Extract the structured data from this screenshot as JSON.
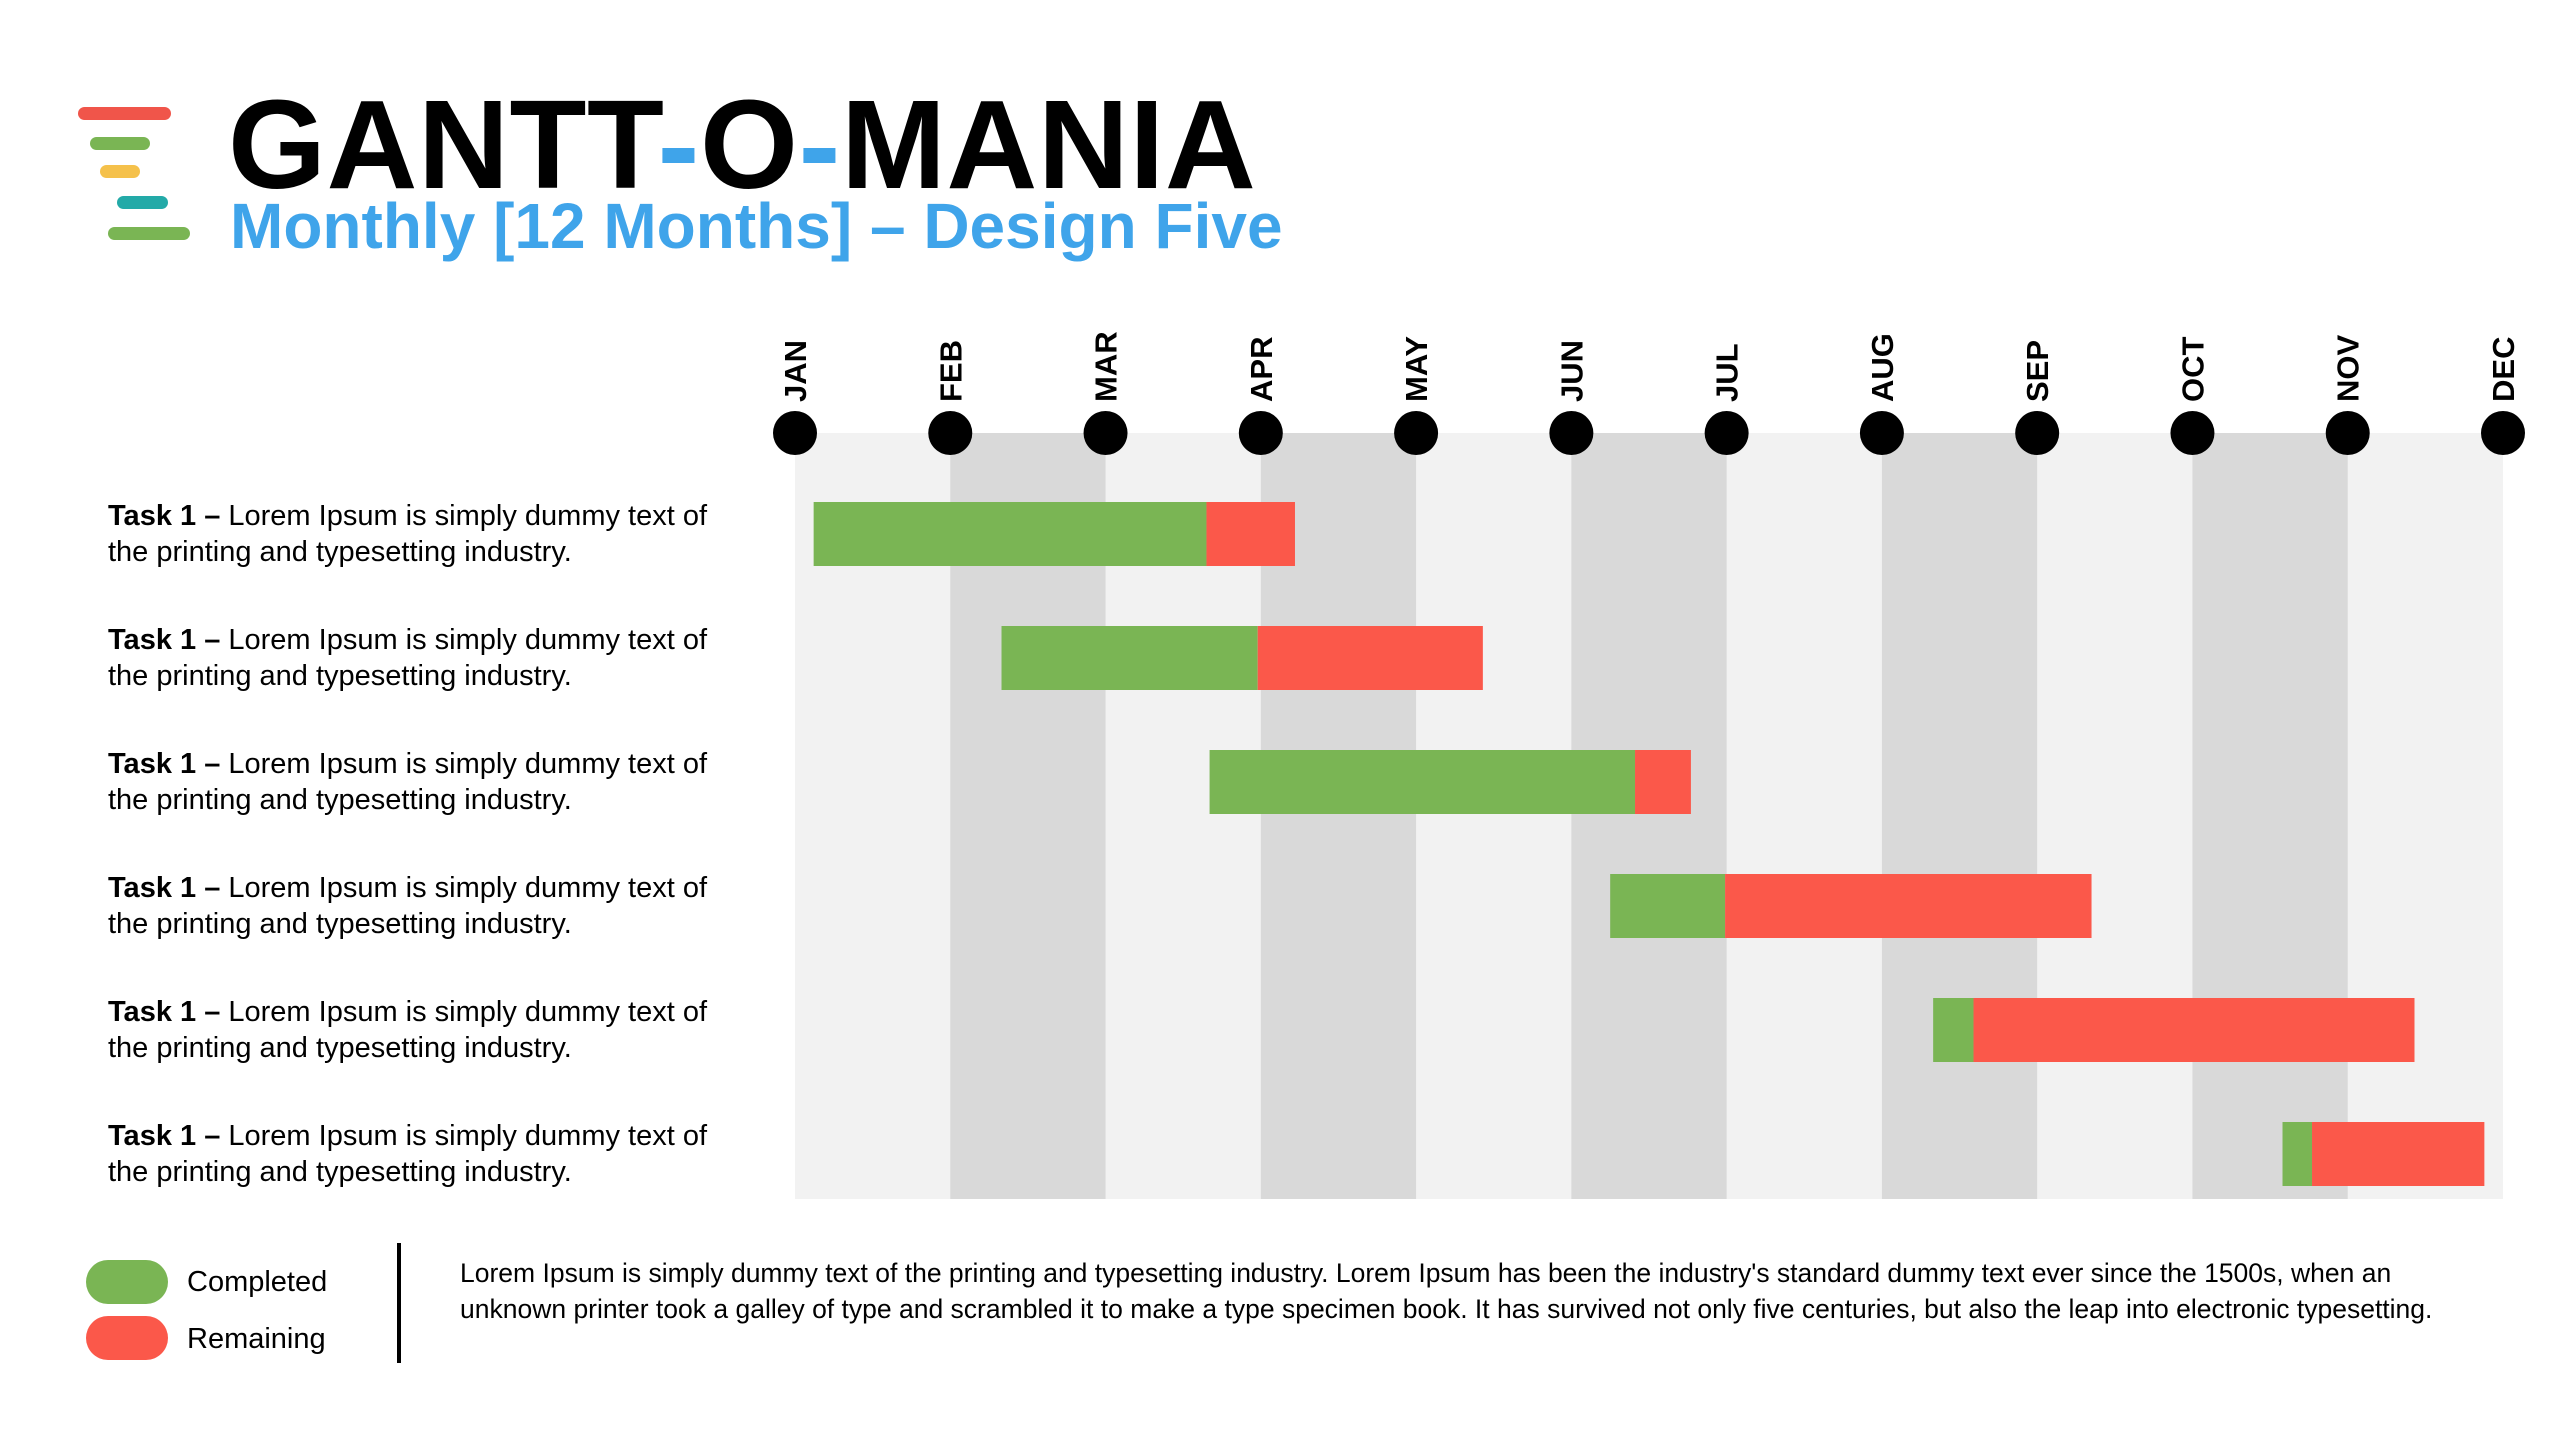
{
  "header": {
    "title_part1": "GANTT",
    "title_dash": "-",
    "title_part2": "O",
    "title_part3": "MANIA",
    "subtitle": "Monthly [12 Months] – Design Five"
  },
  "colors": {
    "completed": "#7ab554",
    "remaining": "#fb584a",
    "accent": "#3fa4ea",
    "column_light": "#f2f2f2",
    "column_dark": "#d9d9d9",
    "logo_bars": [
      "#f0554a",
      "#7ab554",
      "#f5c14b",
      "#23aaa8",
      "#7ab554"
    ]
  },
  "chart_data": {
    "type": "gantt",
    "months": [
      "JAN",
      "FEB",
      "MAR",
      "APR",
      "MAY",
      "JUN",
      "JUL",
      "AUG",
      "SEP",
      "OCT",
      "NOV",
      "DEC"
    ],
    "series": [
      {
        "name": "Completed",
        "color": "#7ab554"
      },
      {
        "name": "Remaining",
        "color": "#fb584a"
      }
    ],
    "tasks": [
      {
        "bold": "Task 1 –",
        "text": " Lorem Ipsum is simply dummy text of the printing and typesetting industry.",
        "start": 0.12,
        "completed_end": 2.65,
        "end": 3.22
      },
      {
        "bold": "Task 1 –",
        "text": " Lorem Ipsum is simply dummy text of the printing and typesetting industry.",
        "start": 1.33,
        "completed_end": 2.98,
        "end": 4.43
      },
      {
        "bold": "Task 1 –",
        "text": " Lorem Ipsum is simply dummy text of the printing and typesetting industry.",
        "start": 2.67,
        "completed_end": 5.41,
        "end": 5.77
      },
      {
        "bold": "Task 1 –",
        "text": " Lorem Ipsum is simply dummy text of the printing and typesetting industry.",
        "start": 5.25,
        "completed_end": 5.99,
        "end": 8.35
      },
      {
        "bold": "Task 1 –",
        "text": " Lorem Ipsum is simply dummy text of the printing and typesetting industry.",
        "start": 7.33,
        "completed_end": 7.59,
        "end": 10.43
      },
      {
        "bold": "Task 1 –",
        "text": " Lorem Ipsum is simply dummy text of the printing and typesetting industry.",
        "start": 9.58,
        "completed_end": 9.77,
        "end": 10.88
      }
    ]
  },
  "legend": {
    "completed_label": "Completed",
    "remaining_label": "Remaining"
  },
  "footnote": "Lorem Ipsum is simply dummy text of the printing and typesetting industry. Lorem Ipsum has been the industry's standard dummy text ever since the 1500s, when an unknown printer took a galley of type and scrambled it to make a type specimen book. It has survived not only five centuries, but also the leap into electronic typesetting."
}
